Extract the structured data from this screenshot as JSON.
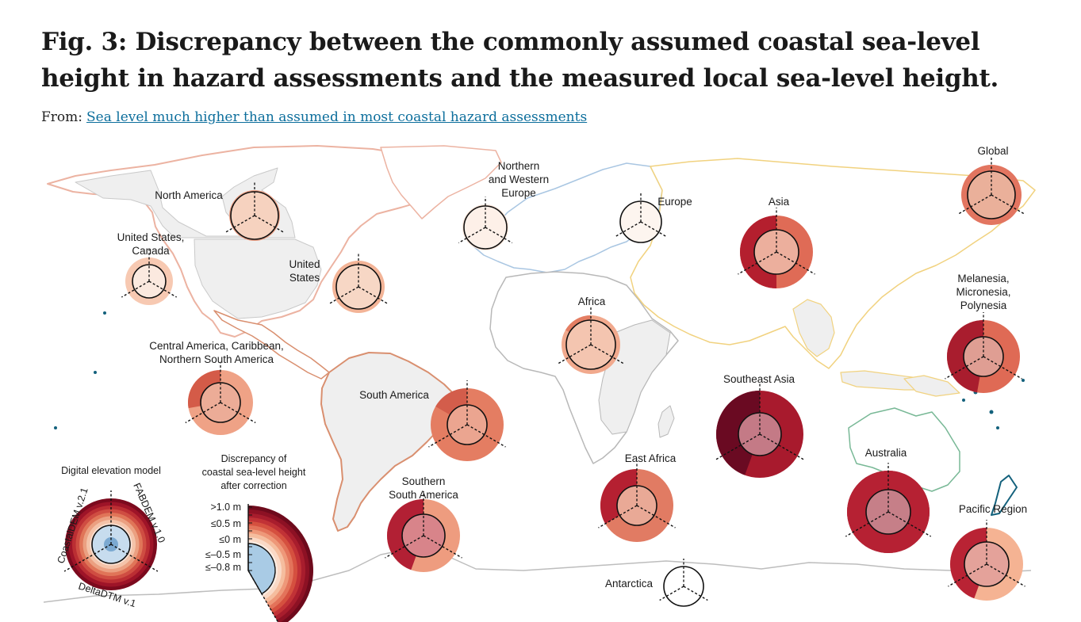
{
  "header": {
    "title": "Fig. 3: Discrepancy between the commonly assumed coastal sea-level height in hazard assessments and the measured local sea-level height.",
    "from_prefix": "From:",
    "from_link": "Sea level much higher than assumed in most coastal hazard assessments"
  },
  "regions": [
    {
      "id": "global",
      "label": [
        "Global"
      ],
      "outer": "#e27560",
      "inner": "#eab09a",
      "cursor": "#f6cab5"
    },
    {
      "id": "north-america",
      "label": [
        "North America"
      ],
      "outer": "#ec9f84",
      "inner": "#f6d2bf"
    },
    {
      "id": "us-canada",
      "label": [
        "United States,",
        "Canada"
      ],
      "outer": "#f7c9b2",
      "inner": "#fbe9df"
    },
    {
      "id": "united-states",
      "label": [
        "United",
        "States"
      ],
      "outer": "#f3b497",
      "inner": "#f7d7c5"
    },
    {
      "id": "nw-europe",
      "label": [
        "Northern",
        "and Western",
        "Europe"
      ],
      "outer": "#fde8dc",
      "inner": "#fdf0e8"
    },
    {
      "id": "europe",
      "label": [
        "Europe"
      ],
      "outer": "#fcefe6",
      "inner": "#fdf5ef"
    },
    {
      "id": "asia",
      "label": [
        "Asia"
      ],
      "outer": "#df6b56",
      "inner": "#ecaf9d",
      "wedge": "#b41f2e"
    },
    {
      "id": "africa",
      "label": [
        "Africa"
      ],
      "outer": "#f1a98d",
      "inner": "#f4c5b0",
      "wedge": "#e47e63"
    },
    {
      "id": "central-america",
      "label": [
        "Central America, Caribbean,",
        "Northern South America"
      ],
      "outer": "#efa286",
      "inner": "#ecac97",
      "wedge": "#d45b48"
    },
    {
      "id": "south-america",
      "label": [
        "South America"
      ],
      "outer": "#e47d62",
      "inner": "#eba590",
      "wedge": "#d35d4b"
    },
    {
      "id": "melanesia",
      "label": [
        "Melanesia,",
        "Micronesia,",
        "Polynesia"
      ],
      "outer": "#df6a55",
      "inner": "#df9e93",
      "wedge": "#a91d2e"
    },
    {
      "id": "southeast-asia",
      "label": [
        "Southeast Asia"
      ],
      "outer": "#a81a2d",
      "inner": "#c47a86",
      "wedge": "#6a0a22"
    },
    {
      "id": "east-africa",
      "label": [
        "East Africa"
      ],
      "outer": "#e17b63",
      "inner": "#e9a996",
      "wedge": "#b52031"
    },
    {
      "id": "southern-south-america",
      "label": [
        "Southern",
        "South America"
      ],
      "outer": "#ee9c7f",
      "inner": "#d8848a",
      "wedge": "#b22034"
    },
    {
      "id": "australia",
      "label": [
        "Australia"
      ],
      "outer": "#9d172c",
      "inner": "#c67f88",
      "wedge": "#b62133"
    },
    {
      "id": "pacific-region",
      "label": [
        "Pacific Region"
      ],
      "outer": "#f5b393",
      "inner": "#e4a29a",
      "wedge": "#b92334"
    },
    {
      "id": "antarctica",
      "label": [
        "Antarctica"
      ],
      "outer": "#ffffff",
      "inner": "#ffffff",
      "wedge": "#8db7d6"
    }
  ],
  "legend": {
    "dem_title": "Digital elevation model",
    "dem_models": [
      "CoastalDEM v.2.1",
      "FABDEM v.1.0",
      "DeltaDTM v.1"
    ],
    "scale_title": [
      "Discrepancy of",
      "coastal sea-level height",
      "after correction"
    ],
    "scale_ticks": [
      ">1.0 m",
      "≤0.5 m",
      "≤0 m",
      "≤–0.5 m",
      "≤–0.8 m"
    ]
  },
  "colors": {
    "north_america_coast": "#ecb3a2",
    "europe_coast": "#a9c6e2",
    "asia_coast": "#f1d27f",
    "africa_coast": "#b8b8b8",
    "south_america_coast": "#d98f6f",
    "australia_coast": "#78b896",
    "pacific_islands": "#13617c",
    "land_fill": "#efefef"
  }
}
